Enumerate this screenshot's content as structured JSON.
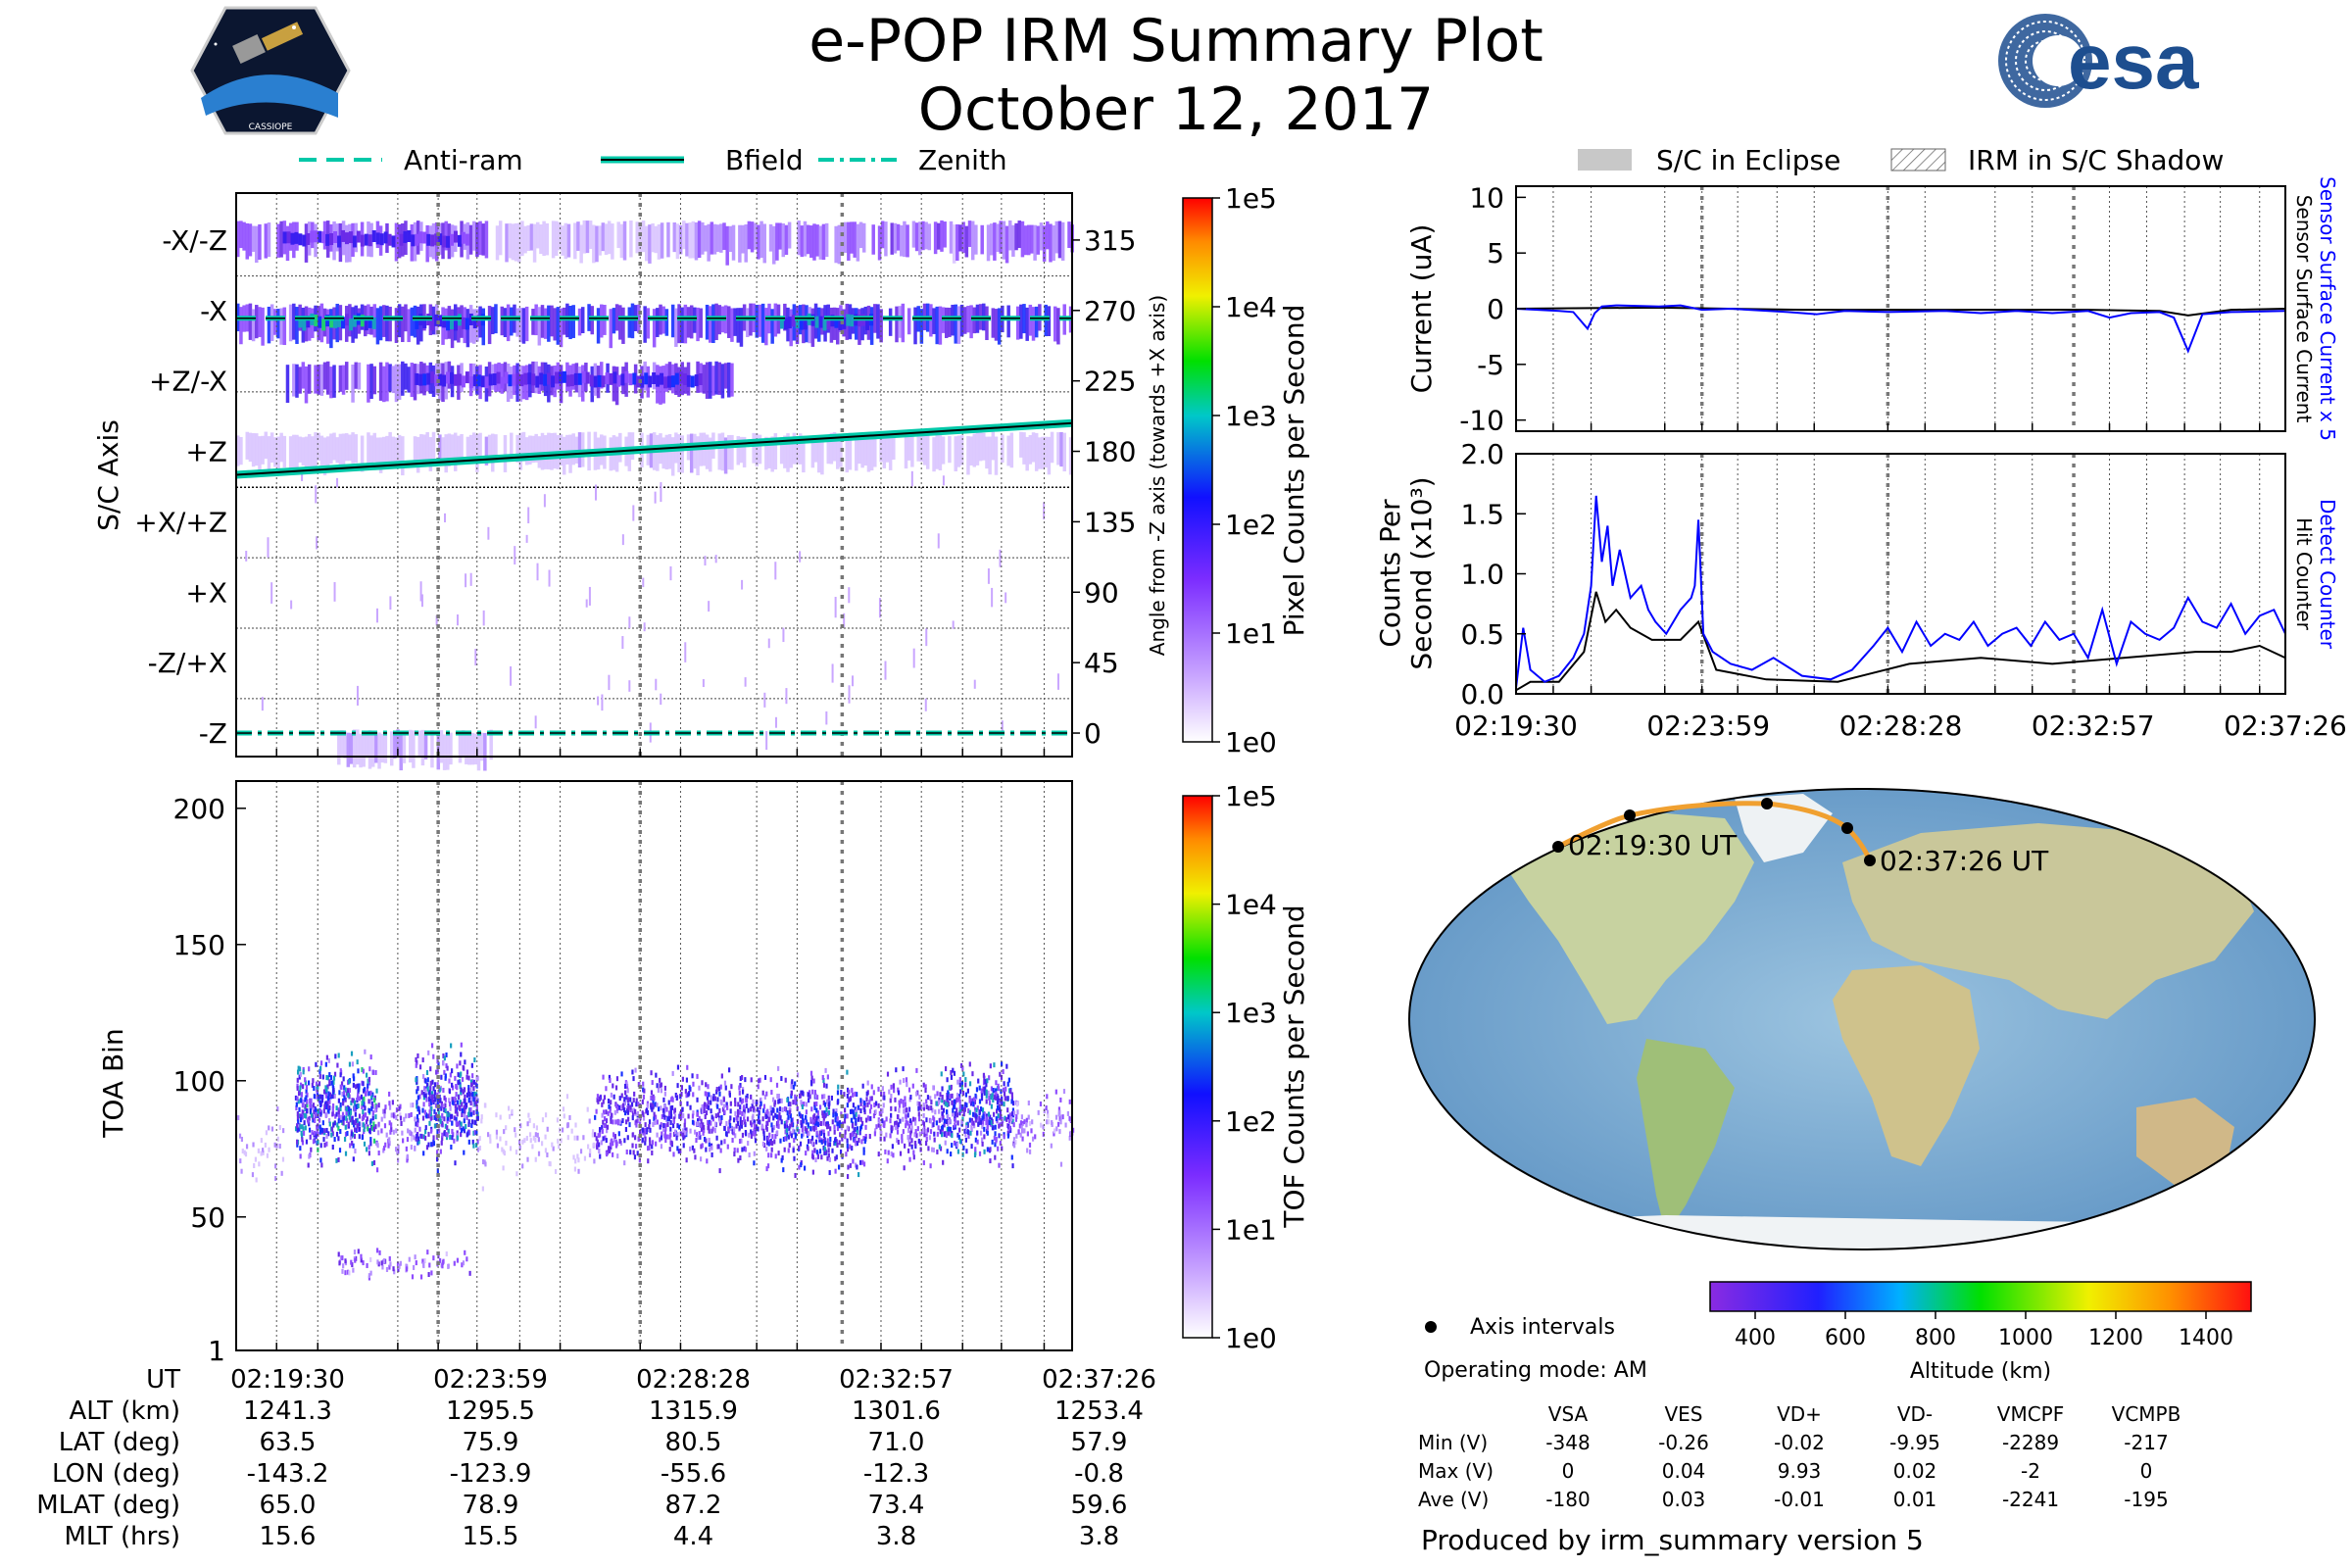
{
  "title": "e-POP IRM Summary Plot",
  "date": "October 12, 2017",
  "logo_left_label": "CASSIOPE",
  "logo_right_text": "esa",
  "top_legend": [
    "Anti-ram",
    "Bfield",
    "Zenith"
  ],
  "right_legend": [
    "S/C in Eclipse",
    "IRM in S/C Shadow"
  ],
  "chart_data": [
    {
      "type": "heatmap",
      "name": "spacecraft-axis-panel",
      "ylabel": "S/C Axis",
      "ylabel_right": "Angle from -Z axis (towards +X axis)",
      "axis_labels": [
        "-X/-Z",
        "-X",
        "+Z/-X",
        "+Z",
        "+X/+Z",
        "+X",
        "-Z/+X",
        "-Z"
      ],
      "angle_ticks": [
        "315",
        "270",
        "225",
        "180",
        "135",
        "90",
        "45",
        "0"
      ],
      "ylim": [
        -15,
        345
      ],
      "xlim": [
        0,
        1076
      ],
      "colorbar_label": "Pixel Counts per Second",
      "colorbar_ticks": [
        "1e5",
        "1e4",
        "1e3",
        "1e2",
        "1e1",
        "1e0"
      ],
      "bfield": {
        "x": [
          0,
          1076
        ],
        "y": [
          165,
          198
        ]
      },
      "anti_ram_angle": 265,
      "zenith_angle": 0,
      "bands": [
        {
          "angle": 315,
          "segments": [
            [
              0,
              330,
              0.35
            ],
            [
              330,
              590,
              0.12
            ],
            [
              590,
              1076,
              0.3
            ]
          ],
          "peak": [
            [
              60,
              300,
              0.5
            ]
          ]
        },
        {
          "angle": 262,
          "segments": [
            [
              0,
              1076,
              0.55
            ]
          ],
          "peak": [
            [
              80,
              180,
              0.8
            ],
            [
              230,
              320,
              0.7
            ],
            [
              700,
              820,
              0.7
            ]
          ]
        },
        {
          "angle": 225,
          "segments": [
            [
              60,
              640,
              0.45
            ]
          ],
          "peak": [
            [
              230,
              600,
              0.55
            ]
          ]
        },
        {
          "angle": 180,
          "segments": [
            [
              0,
              1076,
              0.1
            ]
          ],
          "peak": []
        },
        {
          "angle": -10,
          "segments": [
            [
              130,
              330,
              0.12
            ]
          ],
          "peak": []
        }
      ]
    },
    {
      "type": "heatmap",
      "name": "toa-panel",
      "ylabel": "TOA Bin",
      "yticks": [
        "1",
        "50",
        "100",
        "150",
        "200"
      ],
      "ylim": [
        1,
        210
      ],
      "xlim": [
        0,
        1076
      ],
      "colorbar_label": "TOF Counts per Second",
      "colorbar_ticks": [
        "1e5",
        "1e4",
        "1e3",
        "1e2",
        "1e1",
        "1e0"
      ],
      "blobs": [
        {
          "t0": 0,
          "t1": 60,
          "lo": 60,
          "hi": 95,
          "d": 0.15
        },
        {
          "t0": 75,
          "t1": 180,
          "lo": 65,
          "hi": 115,
          "d": 0.75
        },
        {
          "t0": 180,
          "t1": 230,
          "lo": 65,
          "hi": 100,
          "d": 0.35
        },
        {
          "t0": 230,
          "t1": 310,
          "lo": 65,
          "hi": 120,
          "d": 0.7
        },
        {
          "t0": 310,
          "t1": 460,
          "lo": 60,
          "hi": 100,
          "d": 0.15
        },
        {
          "t0": 460,
          "t1": 700,
          "lo": 65,
          "hi": 110,
          "d": 0.55
        },
        {
          "t0": 700,
          "t1": 810,
          "lo": 62,
          "hi": 108,
          "d": 0.65
        },
        {
          "t0": 810,
          "t1": 900,
          "lo": 65,
          "hi": 110,
          "d": 0.45
        },
        {
          "t0": 900,
          "t1": 1000,
          "lo": 65,
          "hi": 112,
          "d": 0.7
        },
        {
          "t0": 1000,
          "t1": 1076,
          "lo": 70,
          "hi": 100,
          "d": 0.3
        },
        {
          "t0": 130,
          "t1": 300,
          "lo": 28,
          "hi": 40,
          "d": 0.35
        }
      ]
    },
    {
      "type": "line",
      "name": "current-panel",
      "ylabel": "Current (uA)",
      "ylim": [
        -11,
        11
      ],
      "yticks": [
        "10",
        "5",
        "0",
        "-5",
        "-10"
      ],
      "right_labels": [
        "Sensor Surface Current x 5",
        "Sensor Surface Current"
      ],
      "series": [
        {
          "name": "Sensor Surface Current x 5",
          "color": "#0000ff",
          "x": [
            0,
            60,
            80,
            100,
            110,
            120,
            140,
            200,
            230,
            260,
            300,
            380,
            420,
            460,
            520,
            600,
            650,
            700,
            750,
            800,
            830,
            860,
            900,
            920,
            940,
            960,
            1000,
            1076
          ],
          "y": [
            0,
            -0.2,
            -0.3,
            -1.8,
            -0.4,
            0.2,
            0.3,
            0.2,
            0.3,
            -0.1,
            0,
            -0.3,
            -0.5,
            -0.2,
            -0.3,
            -0.2,
            -0.4,
            -0.2,
            -0.4,
            -0.2,
            -0.8,
            -0.4,
            -0.3,
            -0.8,
            -3.8,
            -0.5,
            -0.3,
            -0.2
          ]
        },
        {
          "name": "Sensor Surface Current",
          "color": "#000000",
          "x": [
            0,
            200,
            400,
            600,
            800,
            900,
            940,
            1000,
            1076
          ],
          "y": [
            0,
            0.1,
            -0.1,
            -0.1,
            -0.1,
            -0.2,
            -0.6,
            -0.1,
            0
          ]
        }
      ]
    },
    {
      "type": "line",
      "name": "counts-panel",
      "ylabel": "Counts Per Second (x10³)",
      "ylim": [
        0,
        2.0
      ],
      "yticks": [
        "0.0",
        "0.5",
        "1.0",
        "1.5",
        "2.0"
      ],
      "xticks": [
        "02:19:30",
        "02:23:59",
        "02:28:28",
        "02:32:57",
        "02:37:26"
      ],
      "right_labels": [
        "Detect Counter",
        "Hit Counter"
      ],
      "series": [
        {
          "name": "Detect Counter",
          "color": "#0000ff",
          "x": [
            0,
            10,
            20,
            40,
            60,
            80,
            95,
            105,
            112,
            120,
            128,
            135,
            145,
            160,
            175,
            185,
            195,
            210,
            230,
            245,
            250,
            255,
            262,
            275,
            300,
            330,
            360,
            400,
            440,
            470,
            500,
            520,
            540,
            560,
            580,
            600,
            620,
            640,
            660,
            680,
            700,
            720,
            740,
            760,
            780,
            800,
            820,
            840,
            860,
            880,
            900,
            920,
            940,
            960,
            980,
            1000,
            1020,
            1040,
            1060,
            1076
          ],
          "y": [
            0.05,
            0.55,
            0.2,
            0.1,
            0.15,
            0.3,
            0.5,
            0.9,
            1.65,
            1.1,
            1.4,
            0.9,
            1.2,
            0.8,
            0.9,
            0.7,
            0.6,
            0.5,
            0.7,
            0.8,
            0.9,
            1.45,
            0.5,
            0.35,
            0.25,
            0.2,
            0.3,
            0.15,
            0.12,
            0.2,
            0.4,
            0.55,
            0.35,
            0.6,
            0.4,
            0.5,
            0.45,
            0.6,
            0.4,
            0.5,
            0.55,
            0.4,
            0.6,
            0.45,
            0.5,
            0.3,
            0.7,
            0.25,
            0.6,
            0.5,
            0.45,
            0.55,
            0.8,
            0.6,
            0.55,
            0.75,
            0.5,
            0.65,
            0.7,
            0.5
          ]
        },
        {
          "name": "Hit Counter",
          "color": "#000000",
          "x": [
            0,
            20,
            60,
            95,
            112,
            125,
            140,
            160,
            190,
            230,
            255,
            280,
            350,
            450,
            550,
            650,
            750,
            850,
            950,
            1000,
            1040,
            1076
          ],
          "y": [
            0.03,
            0.1,
            0.1,
            0.35,
            0.85,
            0.6,
            0.7,
            0.55,
            0.45,
            0.45,
            0.6,
            0.2,
            0.12,
            0.1,
            0.25,
            0.3,
            0.25,
            0.3,
            0.35,
            0.35,
            0.4,
            0.3
          ]
        }
      ]
    }
  ],
  "map": {
    "start_label": "02:19:30 UT",
    "end_label": "02:37:26 UT",
    "axis_intervals_label": "Axis intervals",
    "operating_mode": "Operating mode: AM",
    "colorbar_label": "Altitude (km)",
    "colorbar_ticks": [
      "400",
      "600",
      "800",
      "1000",
      "1200",
      "1400"
    ],
    "track_color": "#f0a030"
  },
  "summary": {
    "rows": [
      {
        "label": "UT",
        "values": [
          "02:19:30",
          "02:23:59",
          "02:28:28",
          "02:32:57",
          "02:37:26"
        ]
      },
      {
        "label": "ALT (km)",
        "values": [
          "1241.3",
          "1295.5",
          "1315.9",
          "1301.6",
          "1253.4"
        ]
      },
      {
        "label": "LAT (deg)",
        "values": [
          "63.5",
          "75.9",
          "80.5",
          "71.0",
          "57.9"
        ]
      },
      {
        "label": "LON (deg)",
        "values": [
          "-143.2",
          "-123.9",
          "-55.6",
          "-12.3",
          "-0.8"
        ]
      },
      {
        "label": "MLAT (deg)",
        "values": [
          "65.0",
          "78.9",
          "87.2",
          "73.4",
          "59.6"
        ]
      },
      {
        "label": "MLT (hrs)",
        "values": [
          "15.6",
          "15.5",
          "4.4",
          "3.8",
          "3.8"
        ]
      }
    ]
  },
  "voltages": {
    "headers": [
      "VSA",
      "VES",
      "VD+",
      "VD-",
      "VMCPF",
      "VCMPB"
    ],
    "rows": [
      {
        "label": "Min (V)",
        "values": [
          "-348",
          "-0.26",
          "-0.02",
          "-9.95",
          "-2289",
          "-217"
        ]
      },
      {
        "label": "Max (V)",
        "values": [
          "0",
          "0.04",
          "9.93",
          "0.02",
          "-2",
          "0"
        ]
      },
      {
        "label": "Ave (V)",
        "values": [
          "-180",
          "0.03",
          "-0.01",
          "0.01",
          "-2241",
          "-195"
        ]
      }
    ]
  },
  "footer": "Produced by irm_summary version 5"
}
